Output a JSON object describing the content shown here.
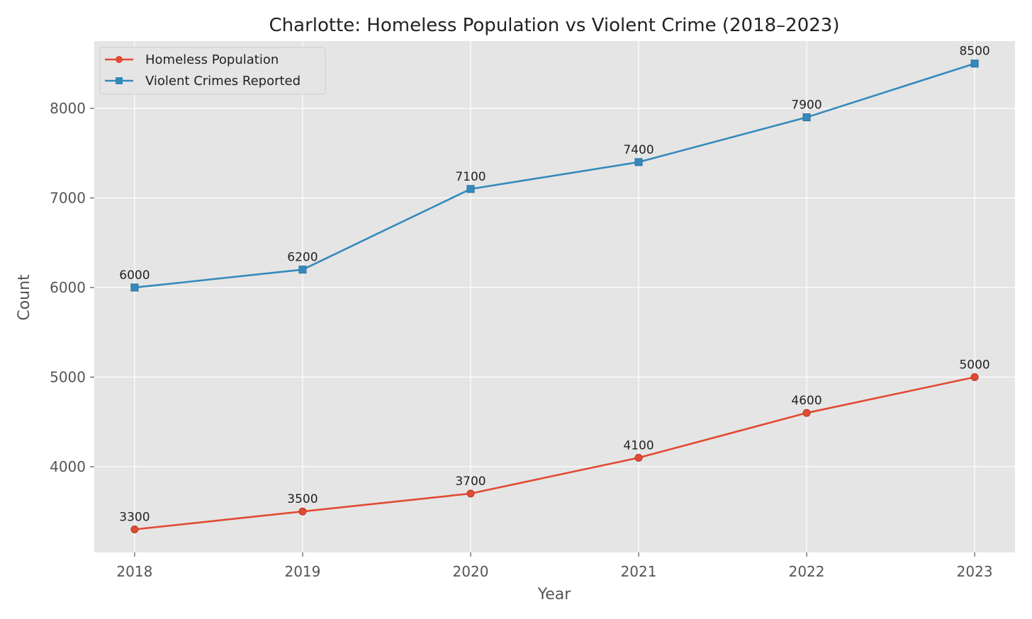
{
  "chart_data": {
    "type": "line",
    "title": "Charlotte: Homeless Population vs Violent Crime (2018–2023)",
    "xlabel": "Year",
    "ylabel": "Count",
    "x": [
      2018,
      2019,
      2020,
      2021,
      2022,
      2023
    ],
    "x_tick_labels": [
      "2018",
      "2019",
      "2020",
      "2021",
      "2022",
      "2023"
    ],
    "y_ticks": [
      4000,
      5000,
      6000,
      7000,
      8000
    ],
    "y_tick_labels": [
      "4000",
      "5000",
      "6000",
      "7000",
      "8000"
    ],
    "xlim": [
      2017.76,
      2023.24
    ],
    "ylim": [
      3043,
      8751
    ],
    "grid": true,
    "legend_position": "top-left",
    "series": [
      {
        "name": "Homeless Population",
        "color": "#E24A33",
        "marker": "circle",
        "values": [
          3300,
          3500,
          3700,
          4100,
          4600,
          5000
        ]
      },
      {
        "name": "Violent Crimes Reported",
        "color": "#348ABD",
        "marker": "square",
        "values": [
          6000,
          6200,
          7100,
          7400,
          7900,
          8500
        ]
      }
    ]
  }
}
